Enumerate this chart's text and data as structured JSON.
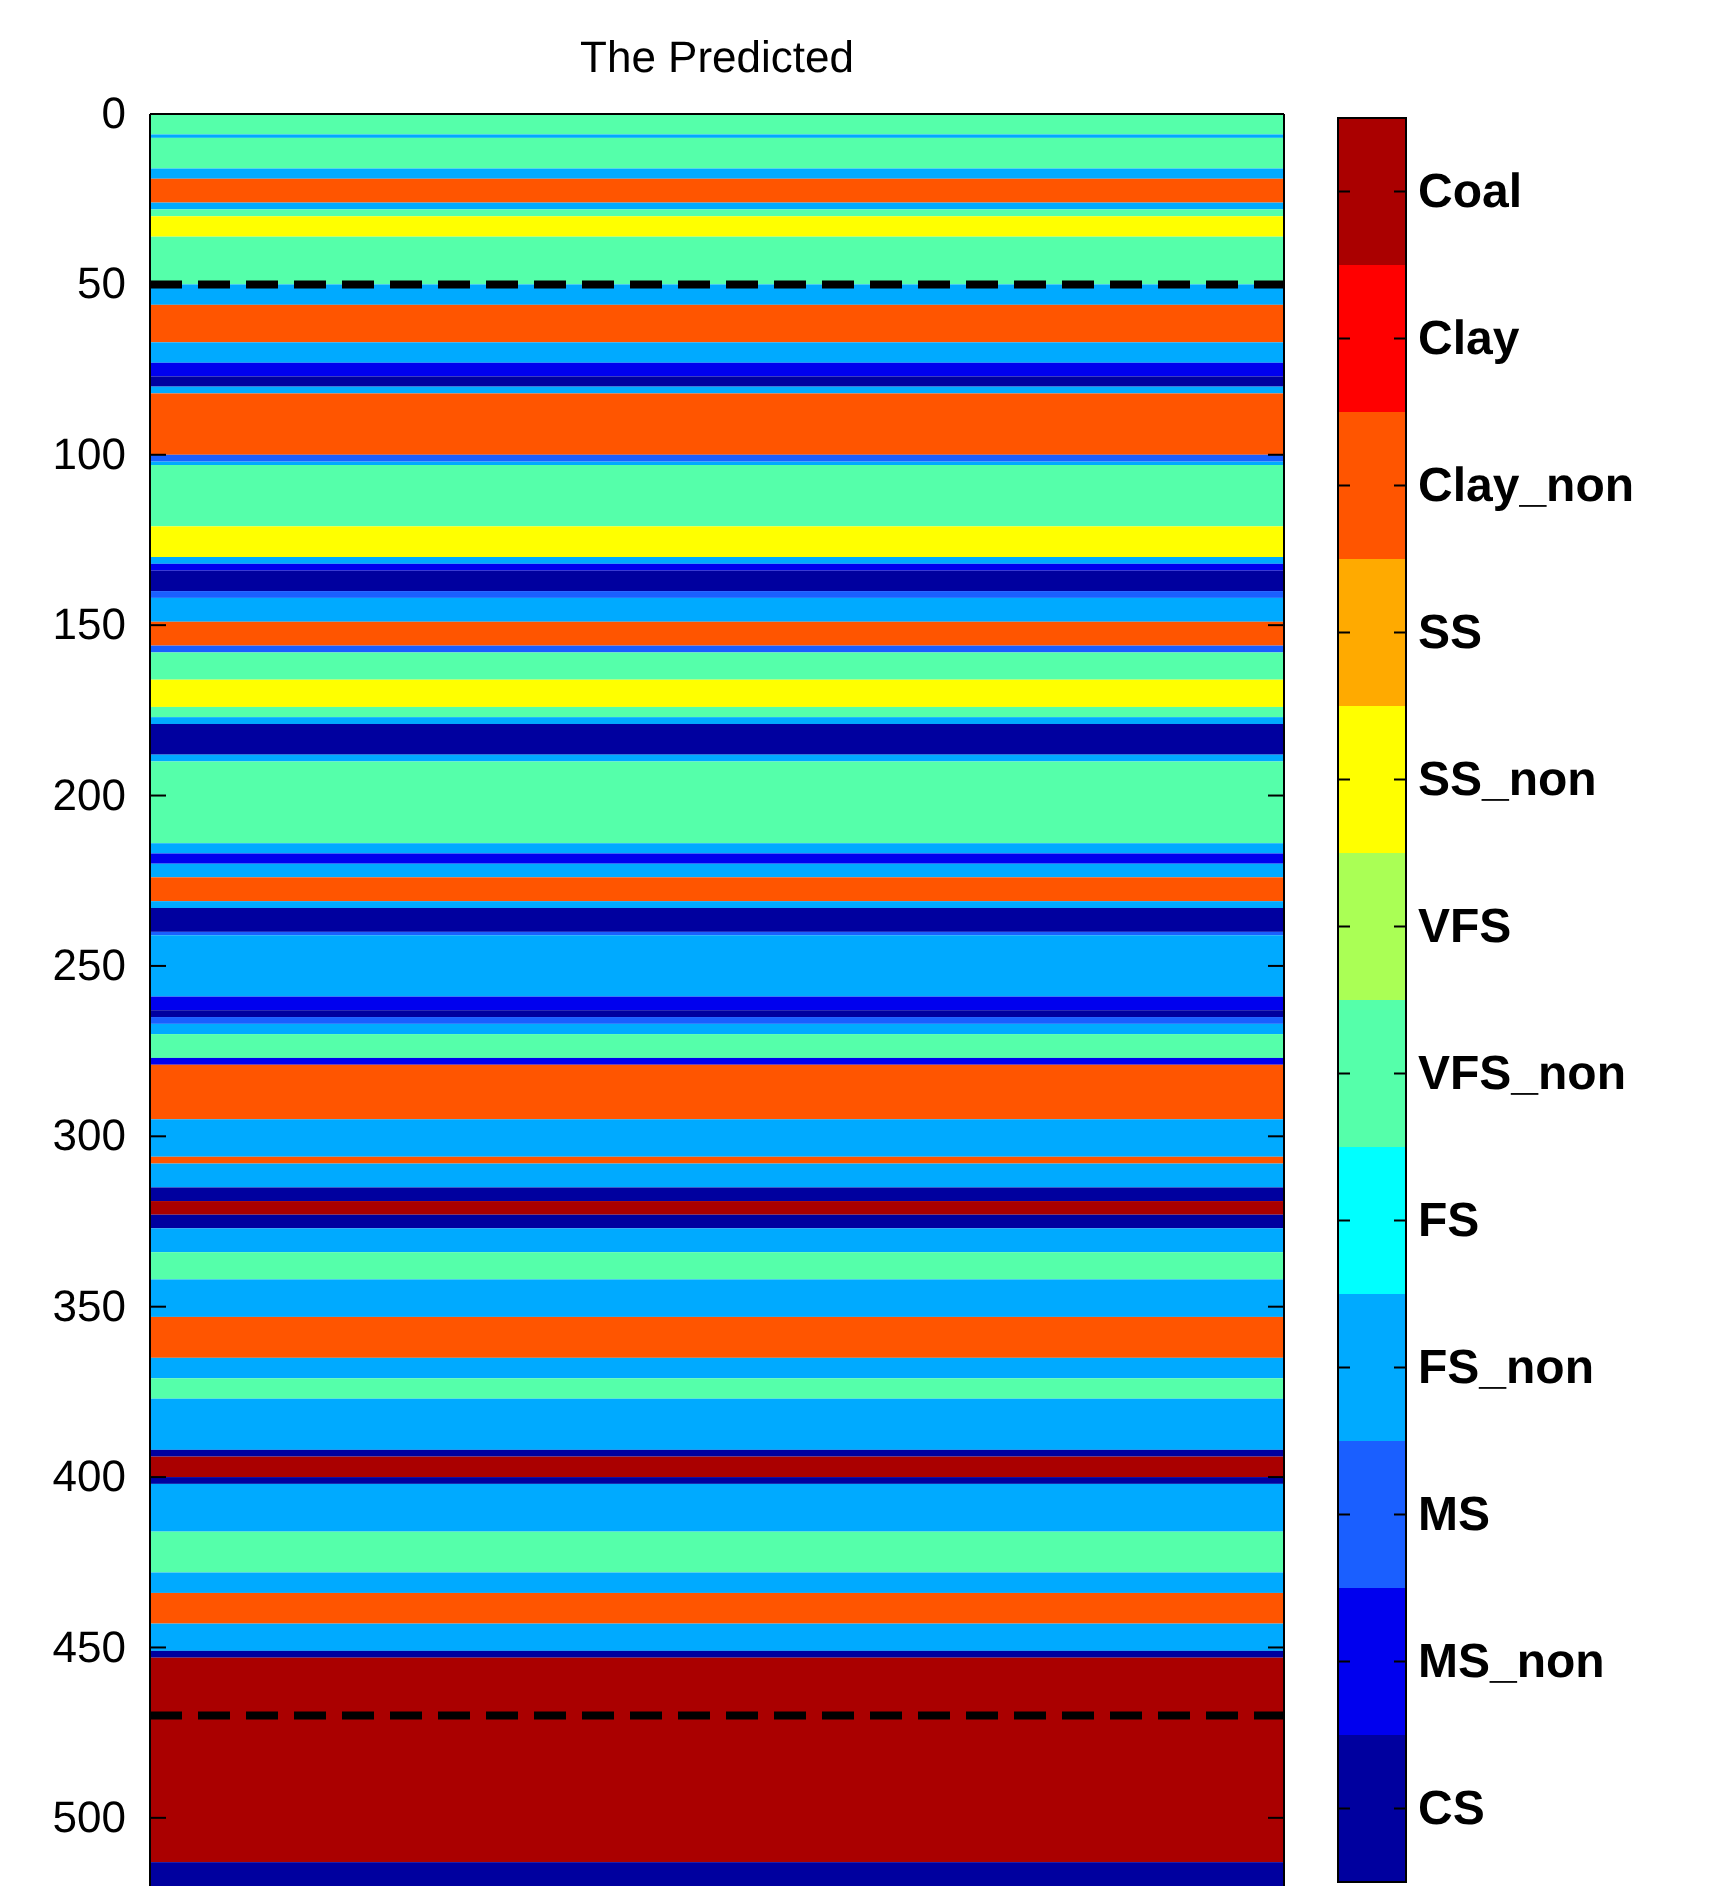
{
  "chart_data": {
    "type": "bar",
    "stacked": true,
    "title": "The Predicted",
    "categories": [
      null
    ],
    "ylim": [
      520,
      0
    ],
    "yticks": [
      0,
      50,
      100,
      150,
      200,
      250,
      300,
      350,
      400,
      450,
      500
    ],
    "clim": [
      0,
      12
    ],
    "cticks": [
      {
        "value": 0.5,
        "label": "CS"
      },
      {
        "value": 1.5,
        "label": "MS_non"
      },
      {
        "value": 2.5,
        "label": "MS"
      },
      {
        "value": 3.5,
        "label": "FS_non"
      },
      {
        "value": 4.5,
        "label": "FS"
      },
      {
        "value": 5.5,
        "label": "VFS_non"
      },
      {
        "value": 6.5,
        "label": "VFS"
      },
      {
        "value": 7.5,
        "label": "SS_non"
      },
      {
        "value": 8.5,
        "label": "SS"
      },
      {
        "value": 9.5,
        "label": "Clay_non"
      },
      {
        "value": 10.5,
        "label": "Clay"
      },
      {
        "value": 11.5,
        "label": "Coal"
      }
    ],
    "colors": [
      "#00009f",
      "#0000ee",
      "#1a5fff",
      "#00aaff",
      "#00ffff",
      "#55ffaa",
      "#aaff55",
      "#ffff00",
      "#ffaa00",
      "#ff5500",
      "#ff0000",
      "#aa0000"
    ],
    "series": [
      {
        "color": "#55ffaa",
        "values": [
          6
        ]
      },
      {
        "color": "#00aaff",
        "values": [
          1
        ]
      },
      {
        "color": "#55ffaa",
        "values": [
          9
        ]
      },
      {
        "color": "#00aaff",
        "values": [
          3
        ]
      },
      {
        "color": "#ff5500",
        "values": [
          7
        ]
      },
      {
        "color": "#00aaff",
        "values": [
          2
        ]
      },
      {
        "color": "#55ffaa",
        "values": [
          2
        ]
      },
      {
        "color": "#ffff00",
        "values": [
          6
        ]
      },
      {
        "color": "#55ffaa",
        "values": [
          14
        ]
      },
      {
        "color": "#00aaff",
        "values": [
          6
        ]
      },
      {
        "color": "#ff5500",
        "values": [
          11
        ]
      },
      {
        "color": "#00aaff",
        "values": [
          6
        ]
      },
      {
        "color": "#0000ee",
        "values": [
          4
        ]
      },
      {
        "color": "#00009f",
        "values": [
          3
        ]
      },
      {
        "color": "#00aaff",
        "values": [
          2
        ]
      },
      {
        "color": "#ff5500",
        "values": [
          18
        ]
      },
      {
        "color": "#1a5fff",
        "values": [
          2
        ]
      },
      {
        "color": "#00aaff",
        "values": [
          1
        ]
      },
      {
        "color": "#55ffaa",
        "values": [
          18
        ]
      },
      {
        "color": "#ffff00",
        "values": [
          9
        ]
      },
      {
        "color": "#00aaff",
        "values": [
          2
        ]
      },
      {
        "color": "#0000ee",
        "values": [
          2
        ]
      },
      {
        "color": "#00009f",
        "values": [
          6
        ]
      },
      {
        "color": "#1a5fff",
        "values": [
          2
        ]
      },
      {
        "color": "#00aaff",
        "values": [
          7
        ]
      },
      {
        "color": "#ff5500",
        "values": [
          7
        ]
      },
      {
        "color": "#1a5fff",
        "values": [
          2
        ]
      },
      {
        "color": "#55ffaa",
        "values": [
          8
        ]
      },
      {
        "color": "#ffff00",
        "values": [
          8
        ]
      },
      {
        "color": "#55ffaa",
        "values": [
          3
        ]
      },
      {
        "color": "#00aaff",
        "values": [
          2
        ]
      },
      {
        "color": "#00009f",
        "values": [
          9
        ]
      },
      {
        "color": "#00aaff",
        "values": [
          2
        ]
      },
      {
        "color": "#55ffaa",
        "values": [
          24
        ]
      },
      {
        "color": "#00aaff",
        "values": [
          3
        ]
      },
      {
        "color": "#0000ee",
        "values": [
          3
        ]
      },
      {
        "color": "#00aaff",
        "values": [
          4
        ]
      },
      {
        "color": "#ff5500",
        "values": [
          7
        ]
      },
      {
        "color": "#00aaff",
        "values": [
          2
        ]
      },
      {
        "color": "#00009f",
        "values": [
          7
        ]
      },
      {
        "color": "#1a5fff",
        "values": [
          1
        ]
      },
      {
        "color": "#00aaff",
        "values": [
          18
        ]
      },
      {
        "color": "#0000ee",
        "values": [
          4
        ]
      },
      {
        "color": "#00009f",
        "values": [
          2
        ]
      },
      {
        "color": "#1a5fff",
        "values": [
          2
        ]
      },
      {
        "color": "#00aaff",
        "values": [
          3
        ]
      },
      {
        "color": "#55ffaa",
        "values": [
          7
        ]
      },
      {
        "color": "#0000ee",
        "values": [
          2
        ]
      },
      {
        "color": "#ff5500",
        "values": [
          16
        ]
      },
      {
        "color": "#00aaff",
        "values": [
          11
        ]
      },
      {
        "color": "#ff5500",
        "values": [
          2
        ]
      },
      {
        "color": "#00aaff",
        "values": [
          7
        ]
      },
      {
        "color": "#00009f",
        "values": [
          4
        ]
      },
      {
        "color": "#aa0000",
        "values": [
          4
        ]
      },
      {
        "color": "#00009f",
        "values": [
          4
        ]
      },
      {
        "color": "#00aaff",
        "values": [
          7
        ]
      },
      {
        "color": "#55ffaa",
        "values": [
          8
        ]
      },
      {
        "color": "#00aaff",
        "values": [
          11
        ]
      },
      {
        "color": "#ff5500",
        "values": [
          12
        ]
      },
      {
        "color": "#00aaff",
        "values": [
          6
        ]
      },
      {
        "color": "#55ffaa",
        "values": [
          6
        ]
      },
      {
        "color": "#00aaff",
        "values": [
          15
        ]
      },
      {
        "color": "#00009f",
        "values": [
          2
        ]
      },
      {
        "color": "#aa0000",
        "values": [
          6
        ]
      },
      {
        "color": "#00009f",
        "values": [
          2
        ]
      },
      {
        "color": "#00aaff",
        "values": [
          14
        ]
      },
      {
        "color": "#55ffaa",
        "values": [
          12
        ]
      },
      {
        "color": "#00aaff",
        "values": [
          6
        ]
      },
      {
        "color": "#ff5500",
        "values": [
          9
        ]
      },
      {
        "color": "#00aaff",
        "values": [
          8
        ]
      },
      {
        "color": "#00009f",
        "values": [
          2
        ]
      },
      {
        "color": "#aa0000",
        "values": [
          60
        ]
      },
      {
        "color": "#00009f",
        "values": [
          7
        ]
      }
    ],
    "ref_lines": [
      {
        "axis": "y",
        "value": 50,
        "color": "#000000",
        "line_style": "dashed"
      },
      {
        "axis": "y",
        "value": 470,
        "color": "#000000",
        "line_style": "dashed"
      }
    ]
  }
}
